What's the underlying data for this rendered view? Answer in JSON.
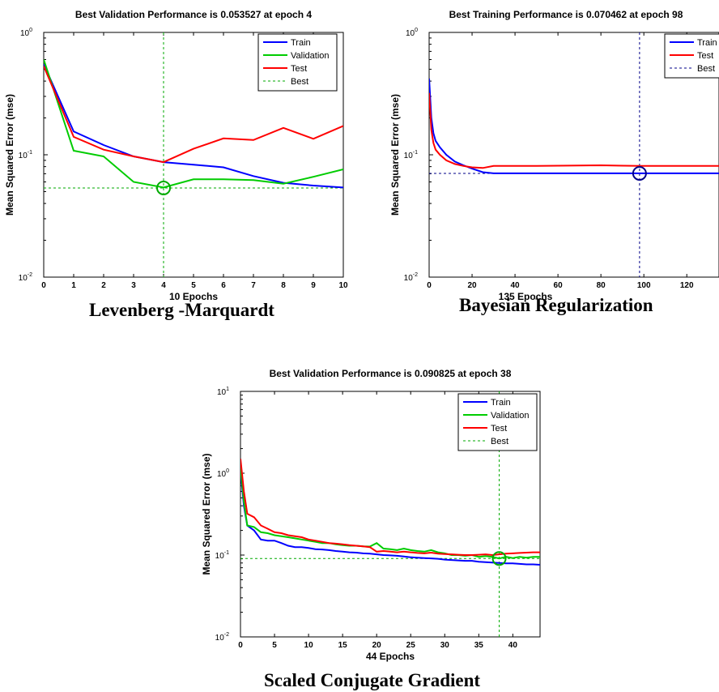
{
  "chart_data": [
    {
      "type": "line",
      "title": "Best Validation Performance is 0.053527 at epoch 4",
      "xlabel": "10 Epochs",
      "ylabel": "Mean Squared Error  (mse)",
      "yscale": "log",
      "xlim": [
        0,
        10
      ],
      "ylim": [
        0.01,
        1
      ],
      "xticks": [
        0,
        1,
        2,
        3,
        4,
        5,
        6,
        7,
        8,
        9,
        10
      ],
      "xtick_labels": [
        "0",
        "1",
        "2",
        "3",
        "4",
        "5",
        "6",
        "7",
        "8",
        "9",
        "10"
      ],
      "yticks": [
        0.01,
        0.1,
        1
      ],
      "ytick_labels": [
        {
          "base": "10",
          "exp": "-2"
        },
        {
          "base": "10",
          "exp": "-1"
        },
        {
          "base": "10",
          "exp": "0"
        }
      ],
      "legend_position": "top-right",
      "grid": false,
      "series": [
        {
          "name": "Train",
          "color": "#0000ff",
          "x": [
            0,
            1,
            2,
            3,
            4,
            5,
            6,
            7,
            8,
            9,
            10
          ],
          "y": [
            0.55,
            0.155,
            0.12,
            0.097,
            0.087,
            0.083,
            0.079,
            0.067,
            0.059,
            0.056,
            0.054
          ]
        },
        {
          "name": "Validation",
          "color": "#00cc00",
          "x": [
            0,
            1,
            2,
            3,
            4,
            5,
            6,
            7,
            8,
            9,
            10
          ],
          "y": [
            0.6,
            0.108,
            0.097,
            0.06,
            0.054,
            0.063,
            0.063,
            0.062,
            0.058,
            0.066,
            0.076
          ]
        },
        {
          "name": "Test",
          "color": "#ff0000",
          "x": [
            0,
            1,
            2,
            3,
            4,
            5,
            6,
            7,
            8,
            9,
            10
          ],
          "y": [
            0.53,
            0.14,
            0.11,
            0.097,
            0.087,
            0.112,
            0.136,
            0.132,
            0.166,
            0.135,
            0.172
          ]
        },
        {
          "name": "Best",
          "color": "#00aa00",
          "dashed": true
        }
      ],
      "best": {
        "x": 4,
        "y": 0.053527,
        "color": "#00aa00"
      }
    },
    {
      "type": "line",
      "title": "Best Training Performance is 0.070462 at epoch 98",
      "xlabel": "135 Epochs",
      "ylabel": "Mean Squared Error  (mse)",
      "yscale": "log",
      "xlim": [
        0,
        135
      ],
      "ylim": [
        0.01,
        1
      ],
      "xticks": [
        0,
        20,
        40,
        60,
        80,
        100,
        120
      ],
      "xtick_labels": [
        "0",
        "20",
        "40",
        "60",
        "80",
        "100",
        "120"
      ],
      "yticks": [
        0.01,
        0.1,
        1
      ],
      "ytick_labels": [
        {
          "base": "10",
          "exp": "-2"
        },
        {
          "base": "10",
          "exp": "-1"
        },
        {
          "base": "10",
          "exp": "0"
        }
      ],
      "legend_position": "top-right",
      "grid": false,
      "series": [
        {
          "name": "Train",
          "color": "#0000ff",
          "x": [
            0,
            1,
            2,
            3,
            5,
            8,
            12,
            16,
            20,
            25,
            30,
            50,
            80,
            98,
            135
          ],
          "y": [
            0.42,
            0.2,
            0.15,
            0.13,
            0.115,
            0.1,
            0.088,
            0.082,
            0.077,
            0.072,
            0.0705,
            0.0705,
            0.0705,
            0.0705,
            0.0705
          ]
        },
        {
          "name": "Test",
          "color": "#ff0000",
          "x": [
            0,
            1,
            2,
            3,
            5,
            8,
            12,
            16,
            20,
            25,
            30,
            50,
            80,
            98,
            135
          ],
          "y": [
            0.32,
            0.16,
            0.125,
            0.11,
            0.1,
            0.09,
            0.084,
            0.081,
            0.079,
            0.078,
            0.081,
            0.081,
            0.082,
            0.081,
            0.081
          ]
        },
        {
          "name": "Best",
          "color": "#000088",
          "dashed": true
        }
      ],
      "best": {
        "x": 98,
        "y": 0.070462,
        "color": "#000088"
      }
    },
    {
      "type": "line",
      "title": "Best Validation Performance is 0.090825 at epoch 38",
      "xlabel": "44 Epochs",
      "ylabel": "Mean Squared Error  (mse)",
      "yscale": "log",
      "xlim": [
        0,
        44
      ],
      "ylim": [
        0.01,
        10
      ],
      "xticks": [
        0,
        5,
        10,
        15,
        20,
        25,
        30,
        35,
        40
      ],
      "xtick_labels": [
        "0",
        "5",
        "10",
        "15",
        "20",
        "25",
        "30",
        "35",
        "40"
      ],
      "yticks": [
        0.01,
        0.1,
        1,
        10
      ],
      "ytick_labels": [
        {
          "base": "10",
          "exp": "-2"
        },
        {
          "base": "10",
          "exp": "-1"
        },
        {
          "base": "10",
          "exp": "0"
        },
        {
          "base": "10",
          "exp": "1"
        }
      ],
      "legend_position": "top-right",
      "grid": false,
      "series": [
        {
          "name": "Train",
          "color": "#0000ff",
          "x": [
            0,
            0.5,
            1,
            2,
            3,
            4,
            5,
            6,
            7,
            8,
            9,
            10,
            11,
            12,
            13,
            14,
            15,
            16,
            17,
            18,
            19,
            20,
            21,
            22,
            23,
            24,
            25,
            26,
            27,
            28,
            29,
            30,
            31,
            32,
            33,
            34,
            35,
            36,
            37,
            38,
            39,
            40,
            41,
            42,
            43,
            44
          ],
          "y": [
            1.1,
            0.4,
            0.23,
            0.2,
            0.155,
            0.15,
            0.15,
            0.14,
            0.13,
            0.125,
            0.125,
            0.122,
            0.118,
            0.117,
            0.115,
            0.112,
            0.11,
            0.108,
            0.107,
            0.105,
            0.104,
            0.102,
            0.1,
            0.099,
            0.098,
            0.096,
            0.094,
            0.093,
            0.092,
            0.091,
            0.09,
            0.088,
            0.087,
            0.086,
            0.085,
            0.085,
            0.083,
            0.082,
            0.081,
            0.08,
            0.079,
            0.079,
            0.078,
            0.077,
            0.077,
            0.076
          ]
        },
        {
          "name": "Validation",
          "color": "#00cc00",
          "x": [
            0,
            0.5,
            1,
            2,
            3,
            4,
            5,
            6,
            7,
            8,
            9,
            10,
            11,
            12,
            13,
            14,
            15,
            16,
            17,
            18,
            19,
            20,
            21,
            22,
            23,
            24,
            25,
            26,
            27,
            28,
            29,
            30,
            31,
            32,
            33,
            34,
            35,
            36,
            37,
            38,
            39,
            40,
            41,
            42,
            43,
            44
          ],
          "y": [
            1.2,
            0.45,
            0.23,
            0.22,
            0.19,
            0.185,
            0.175,
            0.17,
            0.165,
            0.16,
            0.155,
            0.15,
            0.145,
            0.14,
            0.14,
            0.135,
            0.132,
            0.13,
            0.13,
            0.128,
            0.127,
            0.14,
            0.12,
            0.118,
            0.115,
            0.12,
            0.115,
            0.112,
            0.11,
            0.115,
            0.108,
            0.105,
            0.1,
            0.1,
            0.098,
            0.1,
            0.095,
            0.097,
            0.095,
            0.0908,
            0.095,
            0.092,
            0.095,
            0.093,
            0.095,
            0.095
          ]
        },
        {
          "name": "Test",
          "color": "#ff0000",
          "x": [
            0,
            0.5,
            1,
            2,
            3,
            4,
            5,
            6,
            7,
            8,
            9,
            10,
            11,
            12,
            13,
            14,
            15,
            16,
            17,
            18,
            19,
            20,
            21,
            22,
            23,
            24,
            25,
            26,
            27,
            28,
            29,
            30,
            31,
            32,
            33,
            34,
            35,
            36,
            37,
            38,
            39,
            40,
            41,
            42,
            43,
            44
          ],
          "y": [
            1.5,
            0.6,
            0.32,
            0.29,
            0.23,
            0.21,
            0.19,
            0.185,
            0.175,
            0.17,
            0.165,
            0.155,
            0.15,
            0.145,
            0.14,
            0.138,
            0.135,
            0.132,
            0.13,
            0.128,
            0.125,
            0.11,
            0.112,
            0.11,
            0.108,
            0.11,
            0.108,
            0.106,
            0.105,
            0.107,
            0.104,
            0.103,
            0.102,
            0.101,
            0.1,
            0.1,
            0.101,
            0.102,
            0.1,
            0.102,
            0.104,
            0.105,
            0.106,
            0.107,
            0.108,
            0.108
          ]
        },
        {
          "name": "Best",
          "color": "#00aa00",
          "dashed": true
        }
      ],
      "best": {
        "x": 38,
        "y": 0.090825,
        "color": "#00aa00"
      }
    }
  ],
  "captions": [
    "Levenberg -Marquardt",
    "Bayesian Regularization",
    "Scaled Conjugate Gradient"
  ]
}
